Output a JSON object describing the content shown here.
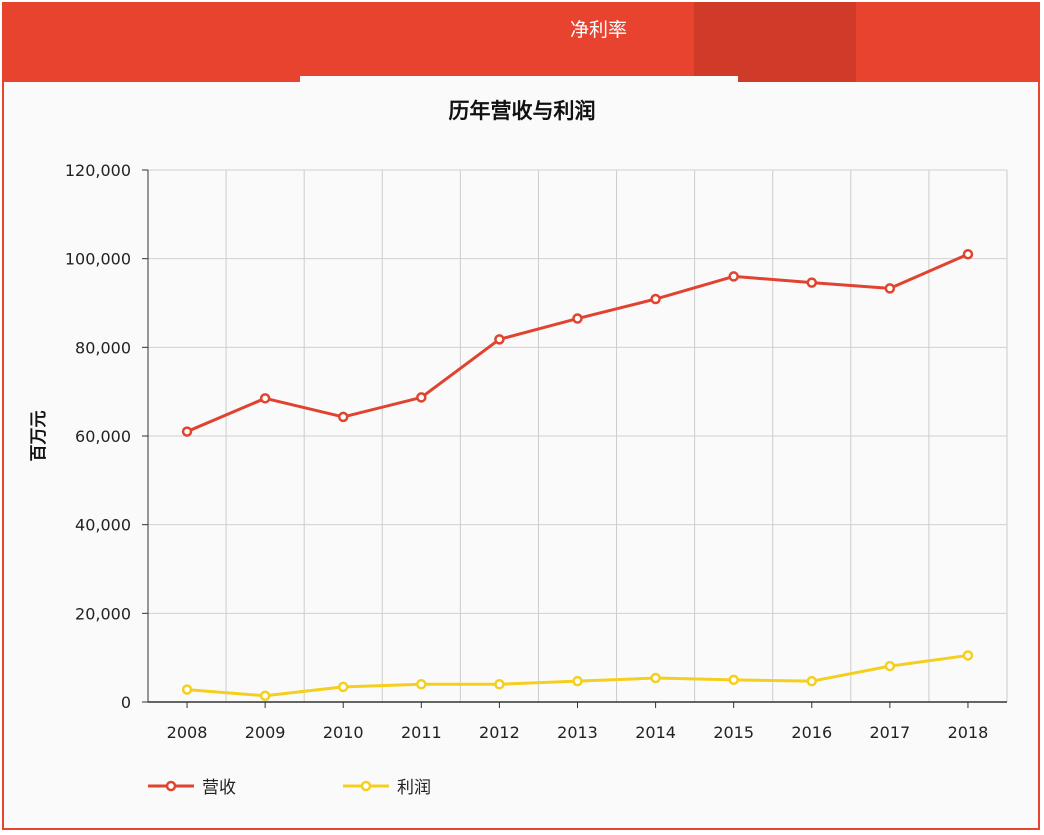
{
  "tab": {
    "label": "净利率"
  },
  "chart_data": {
    "type": "line",
    "title": "历年营收与利润",
    "xlabel": "",
    "ylabel": "百万元",
    "categories": [
      "2008",
      "2009",
      "2010",
      "2011",
      "2012",
      "2013",
      "2014",
      "2015",
      "2016",
      "2017",
      "2018"
    ],
    "ylim": [
      0,
      120000
    ],
    "yticks": [
      0,
      20000,
      40000,
      60000,
      80000,
      100000,
      120000
    ],
    "ytick_labels": [
      "0",
      "20,000",
      "40,000",
      "60,000",
      "80,000",
      "100,000",
      "120,000"
    ],
    "grid": true,
    "legend_position": "bottom-left",
    "series": [
      {
        "name": "营收",
        "color": "#e0432f",
        "values": [
          61000,
          68500,
          64300,
          68700,
          81800,
          86500,
          90900,
          96000,
          94600,
          93300,
          101000
        ]
      },
      {
        "name": "利润",
        "color": "#f5cf1d",
        "values": [
          2800,
          1400,
          3400,
          4000,
          4000,
          4700,
          5400,
          5000,
          4700,
          8100,
          10500
        ]
      }
    ]
  }
}
